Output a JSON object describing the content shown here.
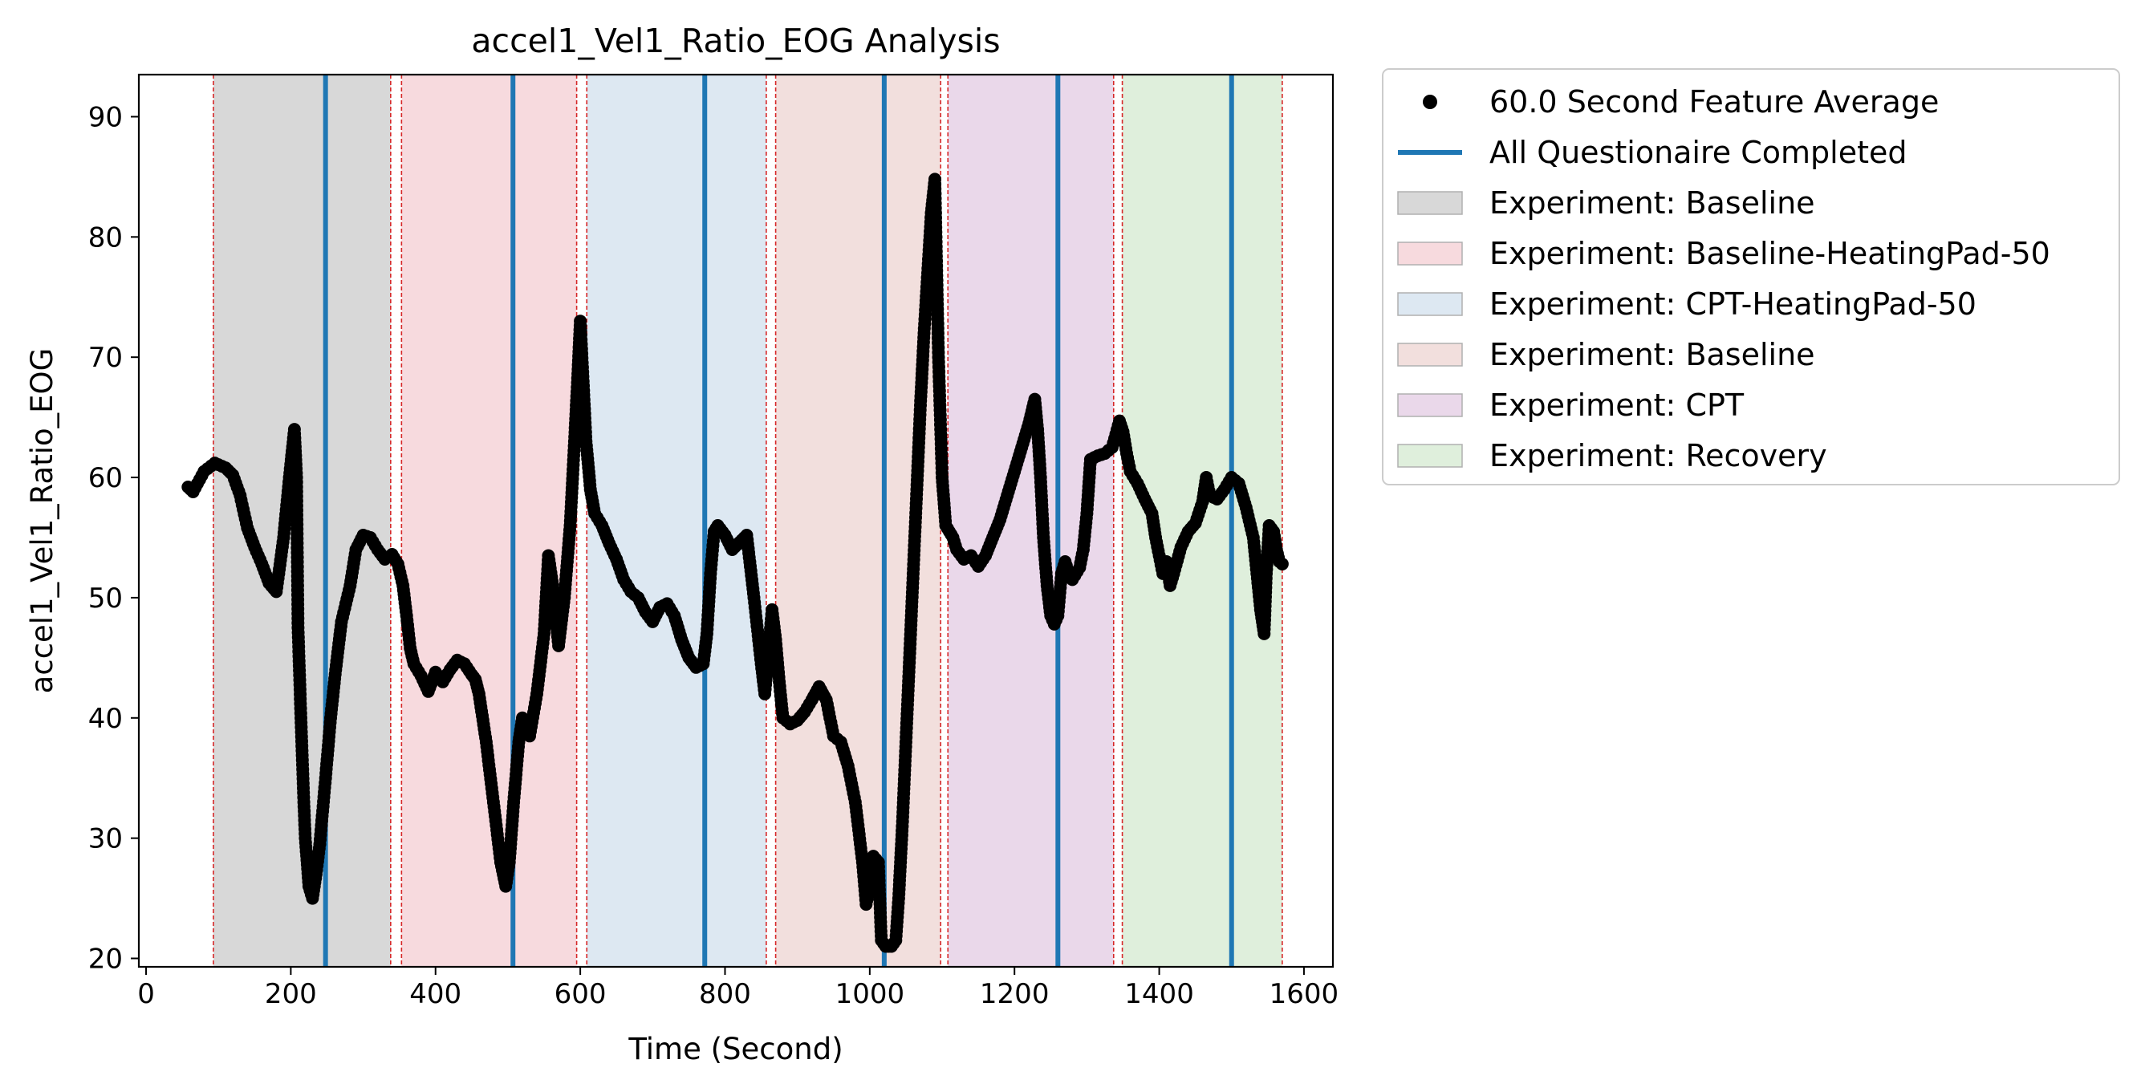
{
  "chart_data": {
    "type": "scatter",
    "title": "accel1_Vel1_Ratio_EOG Analysis",
    "xlabel": "Time (Second)",
    "ylabel": "accel1_Vel1_Ratio_EOG",
    "xlim": [
      -10,
      1640
    ],
    "ylim": [
      19.3,
      93.5
    ],
    "xticks": [
      0,
      200,
      400,
      600,
      800,
      1000,
      1200,
      1400,
      1600
    ],
    "yticks": [
      20,
      30,
      40,
      50,
      60,
      70,
      80,
      90
    ],
    "legend_position": "outside-right-top",
    "colors": {
      "points": "#000000",
      "questionnaire_line": "#1f77b4",
      "boundary_line": "#d62728"
    },
    "series": [
      {
        "name": "60.0 Second Feature Average",
        "kind": "points",
        "anchors": [
          [
            58,
            59.2
          ],
          [
            65,
            58.8
          ],
          [
            80,
            60.5
          ],
          [
            95,
            61.2
          ],
          [
            110,
            60.8
          ],
          [
            120,
            60.2
          ],
          [
            130,
            58.5
          ],
          [
            140,
            55.8
          ],
          [
            150,
            54.2
          ],
          [
            160,
            52.8
          ],
          [
            170,
            51.2
          ],
          [
            180,
            50.5
          ],
          [
            190,
            55
          ],
          [
            198,
            60
          ],
          [
            205,
            64
          ],
          [
            208,
            60
          ],
          [
            210,
            47.5
          ],
          [
            214,
            40
          ],
          [
            218,
            33
          ],
          [
            220,
            30
          ],
          [
            225,
            26
          ],
          [
            230,
            25
          ],
          [
            235,
            27
          ],
          [
            240,
            29.5
          ],
          [
            248,
            35
          ],
          [
            255,
            40
          ],
          [
            262,
            44
          ],
          [
            270,
            48
          ],
          [
            282,
            51
          ],
          [
            290,
            54
          ],
          [
            300,
            55.2
          ],
          [
            310,
            55
          ],
          [
            320,
            54
          ],
          [
            330,
            53.2
          ],
          [
            340,
            53.6
          ],
          [
            348,
            52.8
          ],
          [
            355,
            51
          ],
          [
            360,
            48.5
          ],
          [
            365,
            45.8
          ],
          [
            370,
            44.5
          ],
          [
            380,
            43.5
          ],
          [
            390,
            42.2
          ],
          [
            400,
            43.8
          ],
          [
            410,
            43
          ],
          [
            420,
            44
          ],
          [
            430,
            44.8
          ],
          [
            440,
            44.5
          ],
          [
            450,
            43.6
          ],
          [
            455,
            43.2
          ],
          [
            460,
            42
          ],
          [
            470,
            38
          ],
          [
            480,
            33
          ],
          [
            490,
            28
          ],
          [
            497,
            26
          ],
          [
            502,
            28
          ],
          [
            508,
            33
          ],
          [
            515,
            38
          ],
          [
            520,
            40
          ],
          [
            530,
            38.5
          ],
          [
            540,
            42
          ],
          [
            550,
            47
          ],
          [
            556,
            53.5
          ],
          [
            562,
            51
          ],
          [
            570,
            46
          ],
          [
            578,
            50
          ],
          [
            586,
            56
          ],
          [
            592,
            63
          ],
          [
            597,
            69
          ],
          [
            600,
            73
          ],
          [
            604,
            68
          ],
          [
            608,
            63
          ],
          [
            614,
            59
          ],
          [
            620,
            57
          ],
          [
            630,
            56
          ],
          [
            640,
            54.5
          ],
          [
            650,
            53.2
          ],
          [
            660,
            51.5
          ],
          [
            670,
            50.5
          ],
          [
            680,
            50
          ],
          [
            690,
            48.8
          ],
          [
            700,
            48
          ],
          [
            710,
            49.2
          ],
          [
            720,
            49.5
          ],
          [
            730,
            48.5
          ],
          [
            740,
            46.5
          ],
          [
            750,
            45
          ],
          [
            760,
            44.2
          ],
          [
            770,
            44.5
          ],
          [
            775,
            47
          ],
          [
            780,
            52
          ],
          [
            785,
            55.5
          ],
          [
            790,
            56
          ],
          [
            800,
            55.2
          ],
          [
            810,
            54
          ],
          [
            820,
            54.6
          ],
          [
            830,
            55.2
          ],
          [
            840,
            50
          ],
          [
            850,
            44.5
          ],
          [
            855,
            42
          ],
          [
            860,
            45.5
          ],
          [
            865,
            49
          ],
          [
            870,
            46.5
          ],
          [
            875,
            43
          ],
          [
            880,
            40
          ],
          [
            890,
            39.5
          ],
          [
            900,
            39.8
          ],
          [
            910,
            40.5
          ],
          [
            920,
            41.5
          ],
          [
            930,
            42.6
          ],
          [
            940,
            41.5
          ],
          [
            950,
            38.5
          ],
          [
            960,
            38
          ],
          [
            970,
            36
          ],
          [
            980,
            33
          ],
          [
            990,
            28
          ],
          [
            995,
            24.5
          ],
          [
            1000,
            26
          ],
          [
            1005,
            28.5
          ],
          [
            1012,
            28
          ],
          [
            1016,
            21.5
          ],
          [
            1022,
            21
          ],
          [
            1030,
            21
          ],
          [
            1036,
            21.5
          ],
          [
            1040,
            25
          ],
          [
            1045,
            31
          ],
          [
            1050,
            38
          ],
          [
            1055,
            45
          ],
          [
            1060,
            52
          ],
          [
            1065,
            59
          ],
          [
            1070,
            66
          ],
          [
            1075,
            72
          ],
          [
            1080,
            77
          ],
          [
            1085,
            82
          ],
          [
            1090,
            84.8
          ],
          [
            1095,
            70
          ],
          [
            1100,
            60
          ],
          [
            1105,
            56
          ],
          [
            1110,
            55.5
          ],
          [
            1115,
            55
          ],
          [
            1120,
            54
          ],
          [
            1130,
            53.2
          ],
          [
            1140,
            53.5
          ],
          [
            1150,
            52.6
          ],
          [
            1160,
            53.5
          ],
          [
            1170,
            55
          ],
          [
            1180,
            56.5
          ],
          [
            1190,
            58.5
          ],
          [
            1200,
            60.5
          ],
          [
            1210,
            62.5
          ],
          [
            1220,
            64.5
          ],
          [
            1228,
            66.5
          ],
          [
            1232,
            64
          ],
          [
            1236,
            60
          ],
          [
            1240,
            55
          ],
          [
            1245,
            51
          ],
          [
            1250,
            48.5
          ],
          [
            1255,
            47.8
          ],
          [
            1260,
            48.5
          ],
          [
            1265,
            52
          ],
          [
            1270,
            53
          ],
          [
            1275,
            52
          ],
          [
            1280,
            51.5
          ],
          [
            1290,
            52.5
          ],
          [
            1295,
            54
          ],
          [
            1300,
            57
          ],
          [
            1305,
            61.5
          ],
          [
            1315,
            61.8
          ],
          [
            1325,
            62
          ],
          [
            1335,
            62.5
          ],
          [
            1340,
            63.6
          ],
          [
            1345,
            64.7
          ],
          [
            1350,
            63.8
          ],
          [
            1355,
            62
          ],
          [
            1360,
            60.5
          ],
          [
            1370,
            59.5
          ],
          [
            1380,
            58.2
          ],
          [
            1390,
            57
          ],
          [
            1395,
            55
          ],
          [
            1400,
            53.5
          ],
          [
            1405,
            52
          ],
          [
            1410,
            53
          ],
          [
            1415,
            51
          ],
          [
            1420,
            52
          ],
          [
            1430,
            54.2
          ],
          [
            1440,
            55.5
          ],
          [
            1450,
            56.2
          ],
          [
            1460,
            58
          ],
          [
            1465,
            60
          ],
          [
            1470,
            58.5
          ],
          [
            1480,
            58.2
          ],
          [
            1490,
            59
          ],
          [
            1500,
            60
          ],
          [
            1510,
            59.5
          ],
          [
            1520,
            57.5
          ],
          [
            1530,
            55
          ],
          [
            1535,
            52
          ],
          [
            1540,
            49
          ],
          [
            1545,
            47
          ],
          [
            1548,
            52
          ],
          [
            1552,
            56
          ],
          [
            1558,
            55.5
          ],
          [
            1562,
            54
          ],
          [
            1566,
            53
          ],
          [
            1570,
            52.8
          ]
        ]
      },
      {
        "name": "All Questionaire Completed",
        "kind": "vlines",
        "x": [
          248,
          507,
          772,
          1020,
          1260,
          1500
        ]
      }
    ],
    "boundaries": [
      93,
      338,
      353,
      595,
      609,
      857,
      870,
      1098,
      1108,
      1337,
      1349,
      1570
    ],
    "phases": [
      {
        "name": "Experiment: Baseline",
        "start": 93,
        "end": 338,
        "color": "#d8d8d8"
      },
      {
        "name": "Experiment: Baseline-HeatingPad-50",
        "start": 353,
        "end": 595,
        "color": "#f7dade"
      },
      {
        "name": "Experiment: CPT-HeatingPad-50",
        "start": 609,
        "end": 857,
        "color": "#dde8f2"
      },
      {
        "name": "Experiment: Baseline",
        "start": 870,
        "end": 1098,
        "color": "#f2dfdd"
      },
      {
        "name": "Experiment: CPT",
        "start": 1108,
        "end": 1337,
        "color": "#ead8ea"
      },
      {
        "name": "Experiment: Recovery",
        "start": 1349,
        "end": 1570,
        "color": "#dfefdc"
      }
    ]
  }
}
